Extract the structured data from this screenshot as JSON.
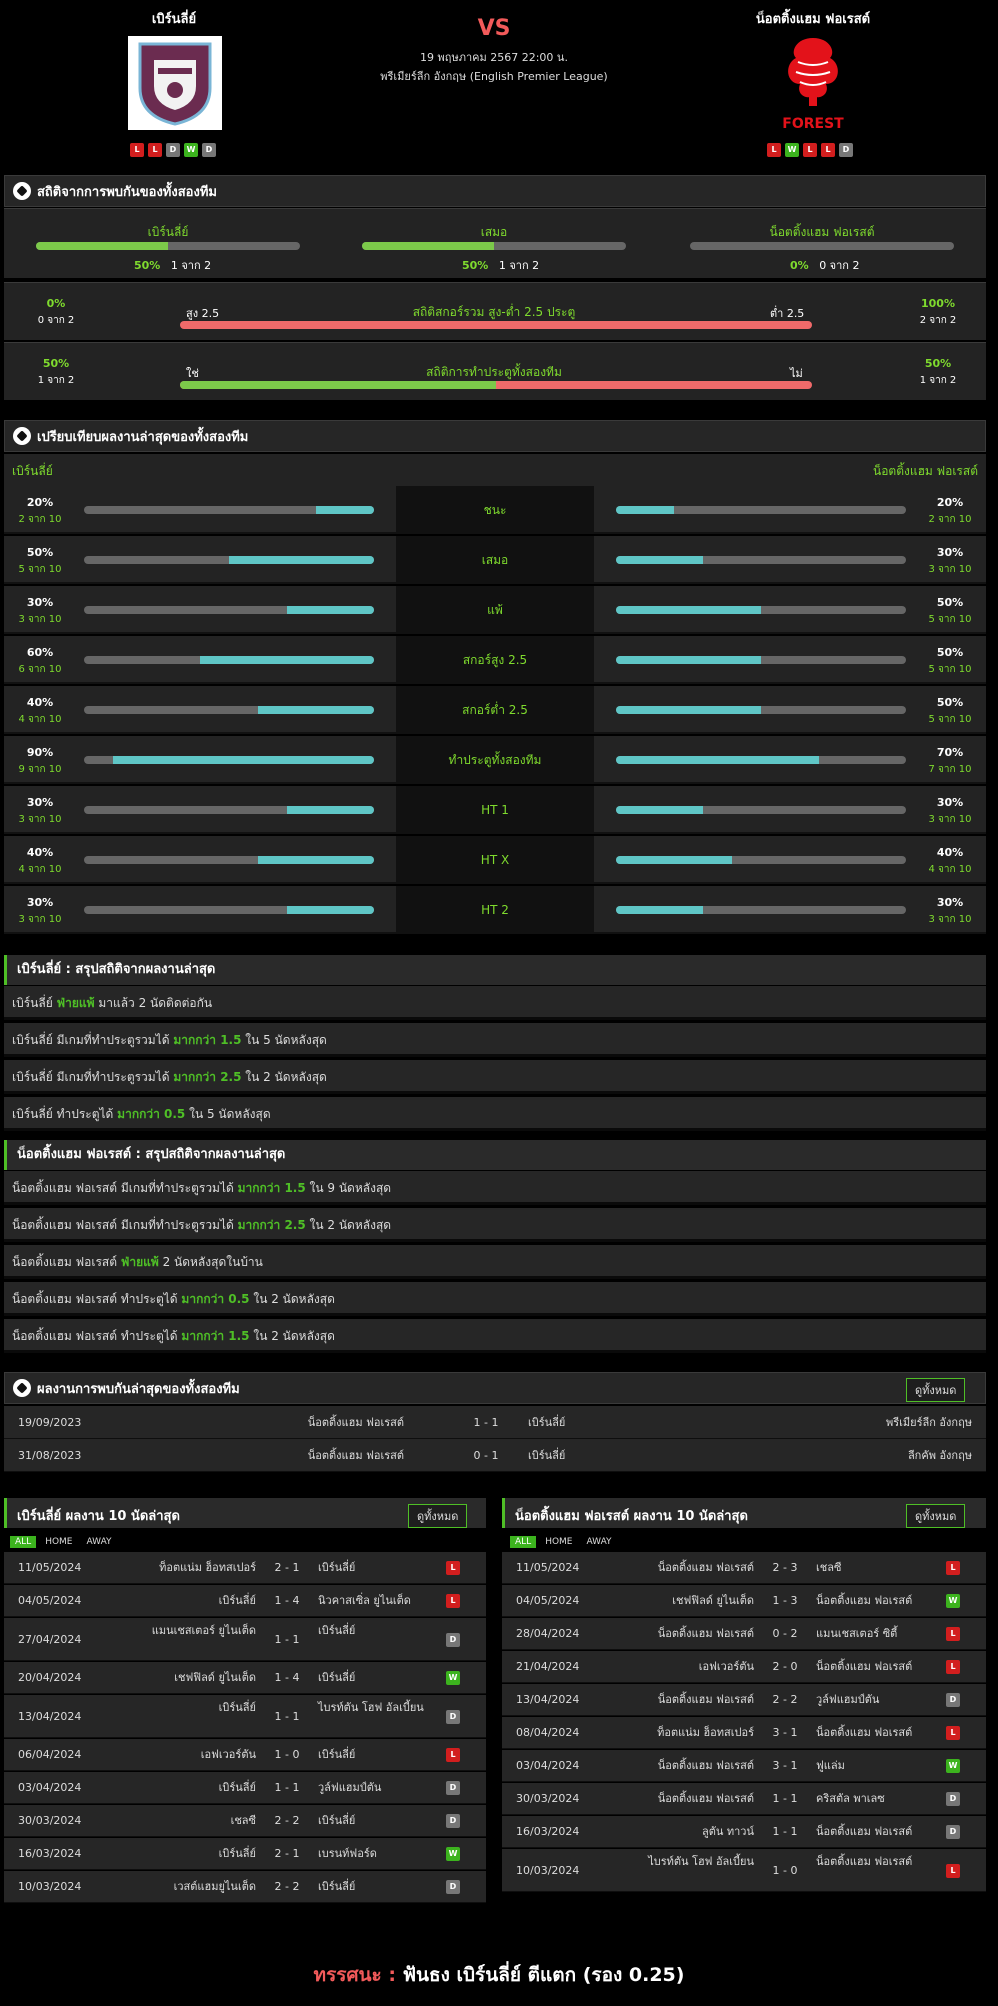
{
  "match": {
    "home": "เบิร์นลี่ย์",
    "away": "น็อตติ้งแฮม ฟอเรสต์",
    "vs": "VS",
    "datetime": "19 พฤษภาคม 2567 22:00 น.",
    "league": "พรีเมียร์ลีก อังกฤษ (English Premier League)",
    "home_form": [
      "L",
      "L",
      "D",
      "W",
      "D"
    ],
    "away_form": [
      "L",
      "W",
      "L",
      "L",
      "D"
    ],
    "away_logo_text": "FOREST"
  },
  "h2h": {
    "title": "สถิติจากการพบกันของทั้งสองทีม",
    "cols": [
      {
        "label": "เบิร์นลี่ย์",
        "pct": "50%",
        "sub": "1 จาก 2",
        "value": 0.5
      },
      {
        "label": "เสมอ",
        "pct": "50%",
        "sub": "1 จาก 2",
        "value": 0.5
      },
      {
        "label": "น็อตติ้งแฮม ฟอเรสต์",
        "pct": "0%",
        "sub": "0 จาก 2",
        "value": 0
      }
    ],
    "ou": {
      "title": "สถิติสกอร์รวม สูง-ต่ำ 2.5 ประตู",
      "left_label": "สูง 2.5",
      "right_label": "ต่ำ 2.5",
      "left_pct": "0%",
      "left_sub": "0 จาก 2",
      "right_pct": "100%",
      "right_sub": "2 จาก 2",
      "value": 0
    },
    "btts": {
      "title": "สถิติการทำประตูทั้งสองทีม",
      "left_label": "ใช่",
      "right_label": "ไม่",
      "left_pct": "50%",
      "left_sub": "1 จาก 2",
      "right_pct": "50%",
      "right_sub": "1 จาก 2",
      "value": 0.5
    }
  },
  "compare": {
    "title": "เปรียบเทียบผลงานล่าสุดของทั้งสองทีม",
    "home": "เบิร์นลี่ย์",
    "away": "น็อตติ้งแฮม ฟอเรสต์",
    "rows": [
      {
        "label": "ชนะ",
        "hp": "20%",
        "hs": "2 จาก 10",
        "hv": 0.2,
        "ap": "20%",
        "as": "2 จาก 10",
        "av": 0.2
      },
      {
        "label": "เสมอ",
        "hp": "50%",
        "hs": "5 จาก 10",
        "hv": 0.5,
        "ap": "30%",
        "as": "3 จาก 10",
        "av": 0.3
      },
      {
        "label": "แพ้",
        "hp": "30%",
        "hs": "3 จาก 10",
        "hv": 0.3,
        "ap": "50%",
        "as": "5 จาก 10",
        "av": 0.5
      },
      {
        "label": "สกอร์สูง 2.5",
        "hp": "60%",
        "hs": "6 จาก 10",
        "hv": 0.6,
        "ap": "50%",
        "as": "5 จาก 10",
        "av": 0.5
      },
      {
        "label": "สกอร์ต่ำ 2.5",
        "hp": "40%",
        "hs": "4 จาก 10",
        "hv": 0.4,
        "ap": "50%",
        "as": "5 จาก 10",
        "av": 0.5
      },
      {
        "label": "ทำประตูทั้งสองทีม",
        "hp": "90%",
        "hs": "9 จาก 10",
        "hv": 0.9,
        "ap": "70%",
        "as": "7 จาก 10",
        "av": 0.7
      },
      {
        "label": "HT 1",
        "hp": "30%",
        "hs": "3 จาก 10",
        "hv": 0.3,
        "ap": "30%",
        "as": "3 จาก 10",
        "av": 0.3
      },
      {
        "label": "HT X",
        "hp": "40%",
        "hs": "4 จาก 10",
        "hv": 0.4,
        "ap": "40%",
        "as": "4 จาก 10",
        "av": 0.4
      },
      {
        "label": "HT 2",
        "hp": "30%",
        "hs": "3 จาก 10",
        "hv": 0.3,
        "ap": "30%",
        "as": "3 จาก 10",
        "av": 0.3
      }
    ]
  },
  "summary_home": {
    "title": "เบิร์นลี่ย์ : สรุปสถิติจากผลงานล่าสุด",
    "rows": [
      [
        "เบิร์นลี่ย์ ",
        "ฟ่ายแพ้",
        " มาแล้ว 2 นัดติดต่อกัน"
      ],
      [
        "เบิร์นลี่ย์  มีเกมที่ทำประตูรวมได้ ",
        "มากกว่า  1.5",
        "  ใน 5 นัดหลังสุด"
      ],
      [
        "เบิร์นลี่ย์  มีเกมที่ทำประตูรวมได้ ",
        "มากกว่า  2.5",
        "  ใน 2 นัดหลังสุด"
      ],
      [
        "เบิร์นลี่ย์  ทำประตูได้ ",
        "มากกว่า  0.5",
        "  ใน 5 นัดหลังสุด"
      ]
    ]
  },
  "summary_away": {
    "title": "น็อตติ้งแฮม ฟอเรสต์ : สรุปสถิติจากผลงานล่าสุด",
    "rows": [
      [
        "น็อตติ้งแฮม ฟอเรสต์  มีเกมที่ทำประตูรวมได้ ",
        "มากกว่า  1.5",
        "  ใน 9 นัดหลังสุด"
      ],
      [
        "น็อตติ้งแฮม ฟอเรสต์  มีเกมที่ทำประตูรวมได้ ",
        "มากกว่า  2.5",
        "  ใน 2 นัดหลังสุด"
      ],
      [
        "น็อตติ้งแฮม ฟอเรสต์ ",
        "ฟ่ายแพ้",
        "  2  นัดหลังสุดในบ้าน"
      ],
      [
        "น็อตติ้งแฮม ฟอเรสต์  ทำประตูได้ ",
        "มากกว่า  0.5",
        "  ใน 2 นัดหลังสุด"
      ],
      [
        "น็อตติ้งแฮม ฟอเรสต์  ทำประตูได้ ",
        "มากกว่า  1.5",
        "  ใน 2 นัดหลังสุด"
      ]
    ]
  },
  "h2h_results": {
    "title": "ผลงานการพบกันล่าสุดของทั้งสองทีม",
    "view_all": "ดูทั้งหมด",
    "rows": [
      {
        "date": "19/09/2023",
        "home": "น็อตติ้งแฮม ฟอเรสต์",
        "score": "1 - 1",
        "away": "เบิร์นลี่ย์",
        "comp": "พรีเมียร์ลีก อังกฤษ"
      },
      {
        "date": "31/08/2023",
        "home": "น็อตติ้งแฮม ฟอเรสต์",
        "score": "0 - 1",
        "away": "เบิร์นลี่ย์",
        "comp": "ลีกคัพ อังกฤษ"
      }
    ]
  },
  "last10_home": {
    "title": "เบิร์นลี่ย์ ผลงาน 10 นัดล่าสุด",
    "view_all": "ดูทั้งหมด",
    "tabs": [
      "ALL",
      "HOME",
      "AWAY"
    ],
    "rows": [
      {
        "date": "11/05/2024",
        "home": "ท็อตแน่ม ฮ็อทสเปอร์",
        "score": "2 - 1",
        "away": "เบิร์นลี่ย์",
        "r": "L"
      },
      {
        "date": "04/05/2024",
        "home": "เบิร์นลี่ย์",
        "score": "1 - 4",
        "away": "นิวคาสเซิ่ล ยูไนเต็ด",
        "r": "L"
      },
      {
        "date": "27/04/2024",
        "home": "แมนเชสเตอร์ ยูไนเต็ด",
        "score": "1 - 1",
        "away": "เบิร์นลี่ย์",
        "r": "D"
      },
      {
        "date": "20/04/2024",
        "home": "เชฟฟิลด์ ยูไนเต็ด",
        "score": "1 - 4",
        "away": "เบิร์นลี่ย์",
        "r": "W"
      },
      {
        "date": "13/04/2024",
        "home": "เบิร์นลี่ย์",
        "score": "1 - 1",
        "away": "ไบรท์ตัน โฮฟ อัลเบี้ยน",
        "r": "D"
      },
      {
        "date": "06/04/2024",
        "home": "เอฟเวอร์ตัน",
        "score": "1 - 0",
        "away": "เบิร์นลี่ย์",
        "r": "L"
      },
      {
        "date": "03/04/2024",
        "home": "เบิร์นลี่ย์",
        "score": "1 - 1",
        "away": "วูล์ฟแฮมป์ตัน",
        "r": "D"
      },
      {
        "date": "30/03/2024",
        "home": "เชลซี",
        "score": "2 - 2",
        "away": "เบิร์นลี่ย์",
        "r": "D"
      },
      {
        "date": "16/03/2024",
        "home": "เบิร์นลี่ย์",
        "score": "2 - 1",
        "away": "เบรนท์ฟอร์ด",
        "r": "W"
      },
      {
        "date": "10/03/2024",
        "home": "เวสต์แฮมยูไนเต็ด",
        "score": "2 - 2",
        "away": "เบิร์นลี่ย์",
        "r": "D"
      }
    ]
  },
  "last10_away": {
    "title": "น็อตติ้งแฮม ฟอเรสต์ ผลงาน 10 นัดล่าสุด",
    "view_all": "ดูทั้งหมด",
    "tabs": [
      "ALL",
      "HOME",
      "AWAY"
    ],
    "rows": [
      {
        "date": "11/05/2024",
        "home": "น็อตติ้งแฮม ฟอเรสต์",
        "score": "2 - 3",
        "away": "เชลซี",
        "r": "L"
      },
      {
        "date": "04/05/2024",
        "home": "เชฟฟิลด์ ยูไนเต็ด",
        "score": "1 - 3",
        "away": "น็อตติ้งแฮม ฟอเรสต์",
        "r": "W"
      },
      {
        "date": "28/04/2024",
        "home": "น็อตติ้งแฮม ฟอเรสต์",
        "score": "0 - 2",
        "away": "แมนเชสเตอร์ ซิตี้",
        "r": "L"
      },
      {
        "date": "21/04/2024",
        "home": "เอฟเวอร์ตัน",
        "score": "2 - 0",
        "away": "น็อตติ้งแฮม ฟอเรสต์",
        "r": "L"
      },
      {
        "date": "13/04/2024",
        "home": "น็อตติ้งแฮม ฟอเรสต์",
        "score": "2 - 2",
        "away": "วูล์ฟแฮมป์ตัน",
        "r": "D"
      },
      {
        "date": "08/04/2024",
        "home": "ท็อตแน่ม ฮ็อทสเปอร์",
        "score": "3 - 1",
        "away": "น็อตติ้งแฮม ฟอเรสต์",
        "r": "L"
      },
      {
        "date": "03/04/2024",
        "home": "น็อตติ้งแฮม ฟอเรสต์",
        "score": "3 - 1",
        "away": "ฟูแล่ม",
        "r": "W"
      },
      {
        "date": "30/03/2024",
        "home": "น็อตติ้งแฮม ฟอเรสต์",
        "score": "1 - 1",
        "away": "คริสตัล พาเลซ",
        "r": "D"
      },
      {
        "date": "16/03/2024",
        "home": "ลูตัน ทาวน์",
        "score": "1 - 1",
        "away": "น็อตติ้งแฮม ฟอเรสต์",
        "r": "D"
      },
      {
        "date": "10/03/2024",
        "home": "ไบรท์ตัน โฮฟ อัลเบี้ยน",
        "score": "1 - 0",
        "away": "น็อตติ้งแฮม ฟอเรสต์",
        "r": "L"
      }
    ]
  },
  "verdict": {
    "label": "ทรรศนะ :",
    "text": "ฟันธง เบิร์นลี่ย์ ตีแตก (รอง 0.25)"
  }
}
